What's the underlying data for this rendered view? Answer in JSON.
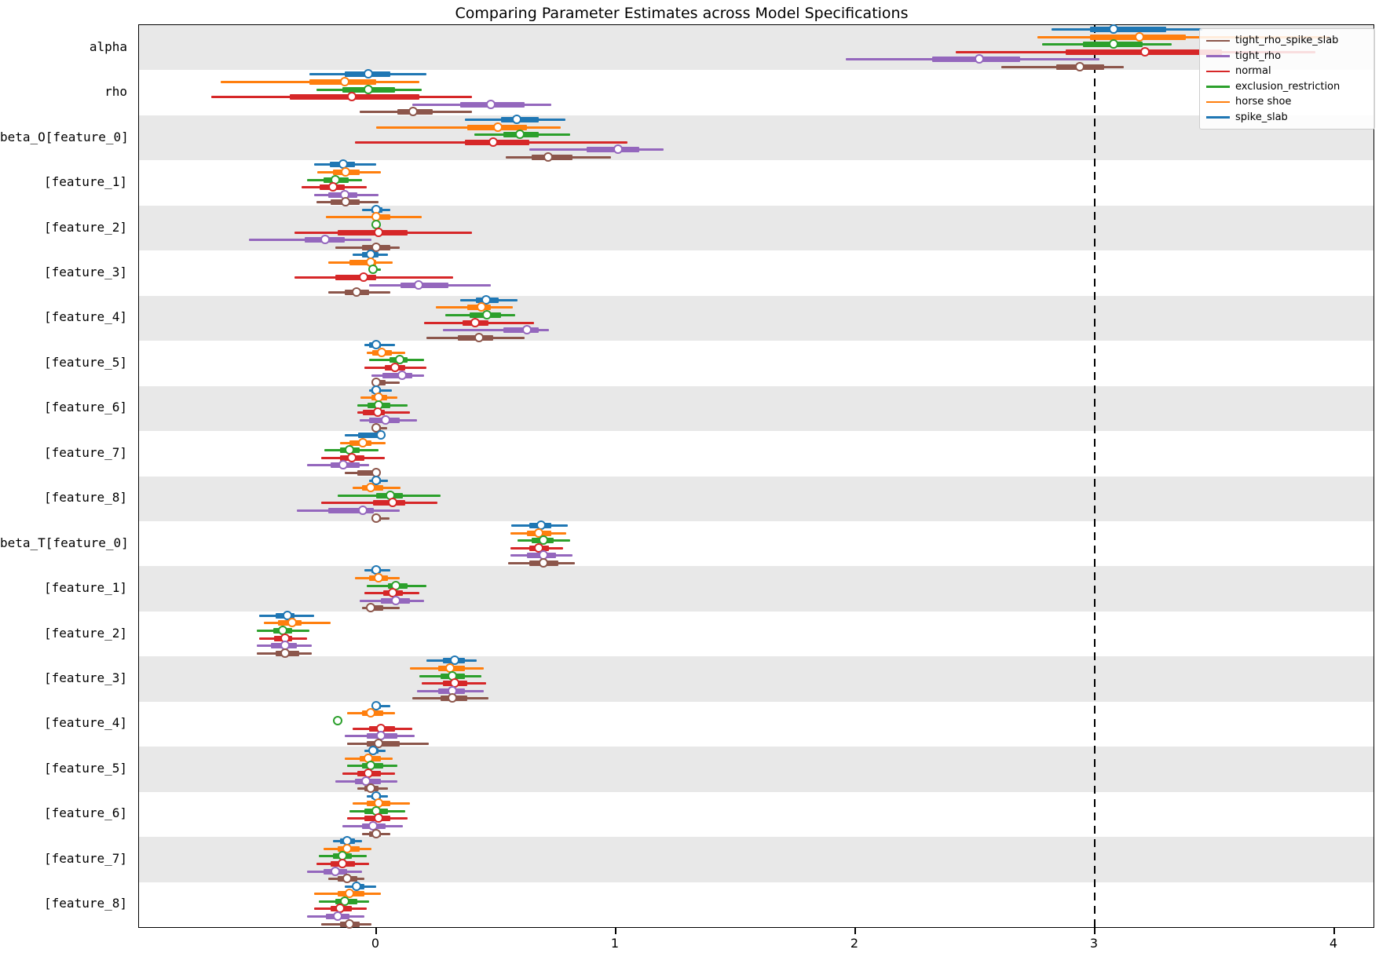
{
  "chart_data": {
    "type": "forest",
    "title": "Comparing Parameter Estimates across Model Specifications",
    "xlabel": "",
    "ylabel": "",
    "x_ticks": [
      0,
      1,
      2,
      3,
      4
    ],
    "x_range": [
      -0.99,
      4.16
    ],
    "grid": false,
    "reference_line": {
      "x": 3,
      "style": "dashed",
      "color": "#000000"
    },
    "interval_format": [
      "ci_low",
      "box_low",
      "median",
      "box_high",
      "ci_high"
    ],
    "legend": {
      "position": "upper right",
      "items": [
        {
          "label": "tight_rho_spike_slab",
          "color": "#8c564b"
        },
        {
          "label": "tight_rho",
          "color": "#9467bd"
        },
        {
          "label": "normal",
          "color": "#d62728"
        },
        {
          "label": "exclusion_restriction",
          "color": "#2ca02c"
        },
        {
          "label": "horse shoe",
          "color": "#ff7f0e"
        },
        {
          "label": "spike_slab",
          "color": "#1f77b4"
        }
      ]
    },
    "series_order": [
      "spike_slab",
      "horse shoe",
      "exclusion_restriction",
      "normal",
      "tight_rho",
      "tight_rho_spike_slab"
    ],
    "series_colors": {
      "spike_slab": "#1f77b4",
      "horse shoe": "#ff7f0e",
      "exclusion_restriction": "#2ca02c",
      "normal": "#d62728",
      "tight_rho": "#9467bd",
      "tight_rho_spike_slab": "#8c564b"
    },
    "band_colors": {
      "shaded": "#e8e8e8",
      "plain": "#ffffff"
    },
    "rows": [
      {
        "label": "alpha",
        "shaded": true,
        "series": {
          "spike_slab": [
            2.82,
            2.98,
            3.08,
            3.3,
            3.45
          ],
          "horse shoe": [
            2.76,
            2.98,
            3.19,
            3.38,
            3.98
          ],
          "exclusion_restriction": [
            2.78,
            2.95,
            3.08,
            3.2,
            3.32
          ],
          "normal": [
            2.42,
            2.88,
            3.21,
            3.53,
            3.92
          ],
          "tight_rho": [
            1.96,
            2.32,
            2.52,
            2.69,
            3.02
          ],
          "tight_rho_spike_slab": [
            2.61,
            2.84,
            2.94,
            3.04,
            3.12
          ]
        }
      },
      {
        "label": "rho",
        "shaded": false,
        "series": {
          "spike_slab": [
            -0.28,
            -0.13,
            -0.03,
            0.06,
            0.21
          ],
          "horse shoe": [
            -0.65,
            -0.28,
            -0.13,
            0.0,
            0.18
          ],
          "exclusion_restriction": [
            -0.25,
            -0.14,
            -0.03,
            0.08,
            0.19
          ],
          "normal": [
            -0.69,
            -0.36,
            -0.1,
            0.18,
            0.4
          ],
          "tight_rho": [
            0.15,
            0.35,
            0.48,
            0.62,
            0.73
          ],
          "tight_rho_spike_slab": [
            -0.07,
            0.09,
            0.155,
            0.235,
            0.4
          ]
        }
      },
      {
        "label": "beta_O[feature_0]",
        "shaded": true,
        "series": {
          "spike_slab": [
            0.37,
            0.52,
            0.59,
            0.68,
            0.79
          ],
          "horse shoe": [
            0.0,
            0.38,
            0.51,
            0.63,
            0.77
          ],
          "exclusion_restriction": [
            0.41,
            0.53,
            0.6,
            0.68,
            0.81
          ],
          "normal": [
            -0.09,
            0.37,
            0.49,
            0.64,
            1.05
          ],
          "tight_rho": [
            0.64,
            0.88,
            1.01,
            1.1,
            1.2
          ],
          "tight_rho_spike_slab": [
            0.54,
            0.65,
            0.72,
            0.82,
            0.98
          ]
        }
      },
      {
        "label": "[feature_1]",
        "shaded": false,
        "series": {
          "spike_slab": [
            -0.26,
            -0.195,
            -0.135,
            -0.09,
            0.0
          ],
          "horse shoe": [
            -0.245,
            -0.18,
            -0.125,
            -0.07,
            0.02
          ],
          "exclusion_restriction": [
            -0.29,
            -0.22,
            -0.17,
            -0.115,
            -0.06
          ],
          "normal": [
            -0.31,
            -0.235,
            -0.18,
            -0.13,
            -0.04
          ],
          "tight_rho": [
            -0.26,
            -0.2,
            -0.13,
            -0.08,
            0.01
          ],
          "tight_rho_spike_slab": [
            -0.25,
            -0.19,
            -0.125,
            -0.07,
            0.01
          ]
        }
      },
      {
        "label": "[feature_2]",
        "shaded": true,
        "series": {
          "spike_slab": [
            -0.06,
            -0.02,
            0.0,
            0.025,
            0.06
          ],
          "horse shoe": [
            -0.21,
            -0.01,
            0.0,
            0.06,
            0.19
          ],
          "exclusion_restriction": [
            -0.02,
            -0.01,
            0.0,
            0.01,
            0.02
          ],
          "normal": [
            -0.34,
            -0.16,
            0.01,
            0.13,
            0.4
          ],
          "tight_rho": [
            -0.53,
            -0.3,
            -0.21,
            -0.13,
            -0.02
          ],
          "tight_rho_spike_slab": [
            -0.17,
            -0.06,
            0.0,
            0.06,
            0.1
          ]
        }
      },
      {
        "label": "[feature_3]",
        "shaded": false,
        "series": {
          "spike_slab": [
            -0.1,
            -0.06,
            -0.02,
            0.01,
            0.05
          ],
          "horse shoe": [
            -0.2,
            -0.11,
            -0.02,
            0.0,
            0.07
          ],
          "exclusion_restriction": [
            -0.03,
            -0.02,
            -0.01,
            0.0,
            0.02
          ],
          "normal": [
            -0.34,
            -0.17,
            -0.05,
            0.0,
            0.32
          ],
          "tight_rho": [
            -0.03,
            0.1,
            0.18,
            0.3,
            0.48
          ],
          "tight_rho_spike_slab": [
            -0.2,
            -0.13,
            -0.08,
            -0.03,
            0.06
          ]
        }
      },
      {
        "label": "[feature_4]",
        "shaded": true,
        "series": {
          "spike_slab": [
            0.35,
            0.415,
            0.46,
            0.51,
            0.59
          ],
          "horse shoe": [
            0.25,
            0.38,
            0.44,
            0.48,
            0.57
          ],
          "exclusion_restriction": [
            0.29,
            0.39,
            0.465,
            0.52,
            0.58
          ],
          "normal": [
            0.2,
            0.36,
            0.415,
            0.47,
            0.66
          ],
          "tight_rho": [
            0.28,
            0.53,
            0.63,
            0.68,
            0.72
          ],
          "tight_rho_spike_slab": [
            0.21,
            0.34,
            0.43,
            0.49,
            0.62
          ]
        }
      },
      {
        "label": "[feature_5]",
        "shaded": false,
        "series": {
          "spike_slab": [
            -0.05,
            -0.03,
            0.0,
            0.02,
            0.08
          ],
          "horse shoe": [
            -0.04,
            -0.015,
            0.025,
            0.065,
            0.12
          ],
          "exclusion_restriction": [
            -0.03,
            0.055,
            0.1,
            0.13,
            0.2
          ],
          "normal": [
            -0.05,
            0.035,
            0.08,
            0.12,
            0.21
          ],
          "tight_rho": [
            -0.02,
            0.025,
            0.11,
            0.15,
            0.2
          ],
          "tight_rho_spike_slab": [
            -0.01,
            0.0,
            0.0,
            0.04,
            0.1
          ]
        }
      },
      {
        "label": "[feature_6]",
        "shaded": true,
        "series": {
          "spike_slab": [
            -0.03,
            -0.02,
            0.0,
            0.02,
            0.065
          ],
          "horse shoe": [
            -0.065,
            -0.02,
            0.013,
            0.045,
            0.09
          ],
          "exclusion_restriction": [
            -0.08,
            -0.035,
            0.013,
            0.06,
            0.13
          ],
          "normal": [
            -0.08,
            -0.055,
            0.007,
            0.035,
            0.14
          ],
          "tight_rho": [
            -0.07,
            -0.03,
            0.04,
            0.1,
            0.17
          ],
          "tight_rho_spike_slab": [
            -0.015,
            -0.005,
            0.0,
            0.02,
            0.045
          ]
        }
      },
      {
        "label": "[feature_7]",
        "shaded": false,
        "series": {
          "spike_slab": [
            -0.13,
            -0.075,
            0.02,
            0.03,
            0.04
          ],
          "horse shoe": [
            -0.15,
            -0.11,
            -0.055,
            -0.02,
            0.04
          ],
          "exclusion_restriction": [
            -0.215,
            -0.15,
            -0.11,
            -0.07,
            0.01
          ],
          "normal": [
            -0.23,
            -0.15,
            -0.1,
            -0.05,
            0.035
          ],
          "tight_rho": [
            -0.29,
            -0.19,
            -0.135,
            -0.07,
            -0.03
          ],
          "tight_rho_spike_slab": [
            -0.13,
            -0.08,
            0.0,
            0.005,
            0.015
          ]
        }
      },
      {
        "label": "[feature_8]",
        "shaded": true,
        "series": {
          "spike_slab": [
            -0.03,
            -0.01,
            0.0,
            0.02,
            0.05
          ],
          "horse shoe": [
            -0.1,
            -0.06,
            -0.02,
            0.03,
            0.1
          ],
          "exclusion_restriction": [
            -0.16,
            0.0,
            0.06,
            0.11,
            0.27
          ],
          "normal": [
            -0.23,
            -0.013,
            0.07,
            0.12,
            0.255
          ],
          "tight_rho": [
            -0.33,
            -0.2,
            -0.055,
            -0.01,
            0.1
          ],
          "tight_rho_spike_slab": [
            -0.02,
            -0.005,
            0.0,
            0.02,
            0.055
          ]
        }
      },
      {
        "label": "beta_T[feature_0]",
        "shaded": false,
        "series": {
          "spike_slab": [
            0.565,
            0.64,
            0.69,
            0.73,
            0.8
          ],
          "horse shoe": [
            0.56,
            0.63,
            0.68,
            0.73,
            0.795
          ],
          "exclusion_restriction": [
            0.59,
            0.65,
            0.7,
            0.74,
            0.81
          ],
          "normal": [
            0.56,
            0.64,
            0.68,
            0.72,
            0.78
          ],
          "tight_rho": [
            0.56,
            0.63,
            0.7,
            0.75,
            0.82
          ],
          "tight_rho_spike_slab": [
            0.55,
            0.64,
            0.7,
            0.76,
            0.83
          ]
        }
      },
      {
        "label": "[feature_1]",
        "shaded": true,
        "series": {
          "spike_slab": [
            -0.05,
            -0.02,
            0.0,
            0.02,
            0.06
          ],
          "horse shoe": [
            -0.09,
            -0.03,
            0.01,
            0.05,
            0.1
          ],
          "exclusion_restriction": [
            -0.04,
            0.05,
            0.085,
            0.13,
            0.21
          ],
          "normal": [
            -0.05,
            0.03,
            0.07,
            0.11,
            0.18
          ],
          "tight_rho": [
            -0.07,
            0.02,
            0.085,
            0.14,
            0.2
          ],
          "tight_rho_spike_slab": [
            -0.06,
            -0.03,
            -0.02,
            0.03,
            0.1
          ]
        }
      },
      {
        "label": "[feature_2]",
        "shaded": false,
        "series": {
          "spike_slab": [
            -0.49,
            -0.42,
            -0.37,
            -0.34,
            -0.26
          ],
          "horse shoe": [
            -0.47,
            -0.41,
            -0.35,
            -0.31,
            -0.19
          ],
          "exclusion_restriction": [
            -0.5,
            -0.43,
            -0.39,
            -0.35,
            -0.28
          ],
          "normal": [
            -0.49,
            -0.425,
            -0.38,
            -0.35,
            -0.29
          ],
          "tight_rho": [
            -0.5,
            -0.44,
            -0.38,
            -0.33,
            -0.27
          ],
          "tight_rho_spike_slab": [
            -0.5,
            -0.42,
            -0.38,
            -0.32,
            -0.27
          ]
        }
      },
      {
        "label": "[feature_3]",
        "shaded": true,
        "series": {
          "spike_slab": [
            0.21,
            0.28,
            0.33,
            0.37,
            0.42
          ],
          "horse shoe": [
            0.14,
            0.26,
            0.31,
            0.37,
            0.45
          ],
          "exclusion_restriction": [
            0.18,
            0.27,
            0.32,
            0.37,
            0.44
          ],
          "normal": [
            0.19,
            0.28,
            0.33,
            0.38,
            0.46
          ],
          "tight_rho": [
            0.17,
            0.26,
            0.32,
            0.37,
            0.45
          ],
          "tight_rho_spike_slab": [
            0.15,
            0.27,
            0.32,
            0.38,
            0.47
          ]
        }
      },
      {
        "label": "[feature_4]",
        "shaded": false,
        "series": {
          "spike_slab": [
            -0.02,
            -0.01,
            0.0,
            0.02,
            0.06
          ],
          "horse shoe": [
            -0.12,
            -0.06,
            -0.02,
            0.03,
            0.08
          ],
          "exclusion_restriction": [
            -0.17,
            -0.165,
            -0.16,
            -0.155,
            -0.15
          ],
          "normal": [
            -0.1,
            -0.03,
            0.02,
            0.08,
            0.15
          ],
          "tight_rho": [
            -0.13,
            -0.04,
            0.02,
            0.09,
            0.16
          ],
          "tight_rho_spike_slab": [
            -0.12,
            -0.04,
            0.01,
            0.1,
            0.22
          ]
        }
      },
      {
        "label": "[feature_5]",
        "shaded": true,
        "series": {
          "spike_slab": [
            -0.05,
            -0.03,
            -0.01,
            0.01,
            0.04
          ],
          "horse shoe": [
            -0.13,
            -0.07,
            -0.03,
            0.02,
            0.07
          ],
          "exclusion_restriction": [
            -0.12,
            -0.06,
            -0.02,
            0.03,
            0.09
          ],
          "normal": [
            -0.14,
            -0.08,
            -0.03,
            0.02,
            0.08
          ],
          "tight_rho": [
            -0.17,
            -0.09,
            -0.04,
            0.02,
            0.09
          ],
          "tight_rho_spike_slab": [
            -0.08,
            -0.05,
            -0.02,
            0.01,
            0.05
          ]
        }
      },
      {
        "label": "[feature_6]",
        "shaded": false,
        "series": {
          "spike_slab": [
            -0.04,
            -0.02,
            0.0,
            0.02,
            0.05
          ],
          "horse shoe": [
            -0.1,
            -0.04,
            0.01,
            0.06,
            0.14
          ],
          "exclusion_restriction": [
            -0.11,
            -0.05,
            0.0,
            0.05,
            0.12
          ],
          "normal": [
            -0.12,
            -0.05,
            0.01,
            0.06,
            0.13
          ],
          "tight_rho": [
            -0.14,
            -0.06,
            -0.01,
            0.04,
            0.11
          ],
          "tight_rho_spike_slab": [
            -0.06,
            -0.03,
            0.0,
            0.02,
            0.06
          ]
        }
      },
      {
        "label": "[feature_7]",
        "shaded": true,
        "series": {
          "spike_slab": [
            -0.18,
            -0.15,
            -0.12,
            -0.09,
            -0.06
          ],
          "horse shoe": [
            -0.22,
            -0.16,
            -0.12,
            -0.07,
            -0.02
          ],
          "exclusion_restriction": [
            -0.24,
            -0.18,
            -0.14,
            -0.1,
            -0.04
          ],
          "normal": [
            -0.25,
            -0.19,
            -0.14,
            -0.09,
            -0.03
          ],
          "tight_rho": [
            -0.29,
            -0.22,
            -0.17,
            -0.12,
            -0.06
          ],
          "tight_rho_spike_slab": [
            -0.2,
            -0.16,
            -0.12,
            -0.08,
            -0.05
          ]
        }
      },
      {
        "label": "[feature_8]",
        "shaded": false,
        "series": {
          "spike_slab": [
            -0.13,
            -0.1,
            -0.08,
            -0.05,
            0.0
          ],
          "horse shoe": [
            -0.26,
            -0.16,
            -0.11,
            -0.05,
            0.02
          ],
          "exclusion_restriction": [
            -0.24,
            -0.17,
            -0.13,
            -0.08,
            -0.03
          ],
          "normal": [
            -0.26,
            -0.19,
            -0.15,
            -0.1,
            -0.04
          ],
          "tight_rho": [
            -0.29,
            -0.21,
            -0.16,
            -0.11,
            -0.05
          ],
          "tight_rho_spike_slab": [
            -0.23,
            -0.15,
            -0.11,
            -0.07,
            -0.02
          ]
        }
      }
    ]
  }
}
